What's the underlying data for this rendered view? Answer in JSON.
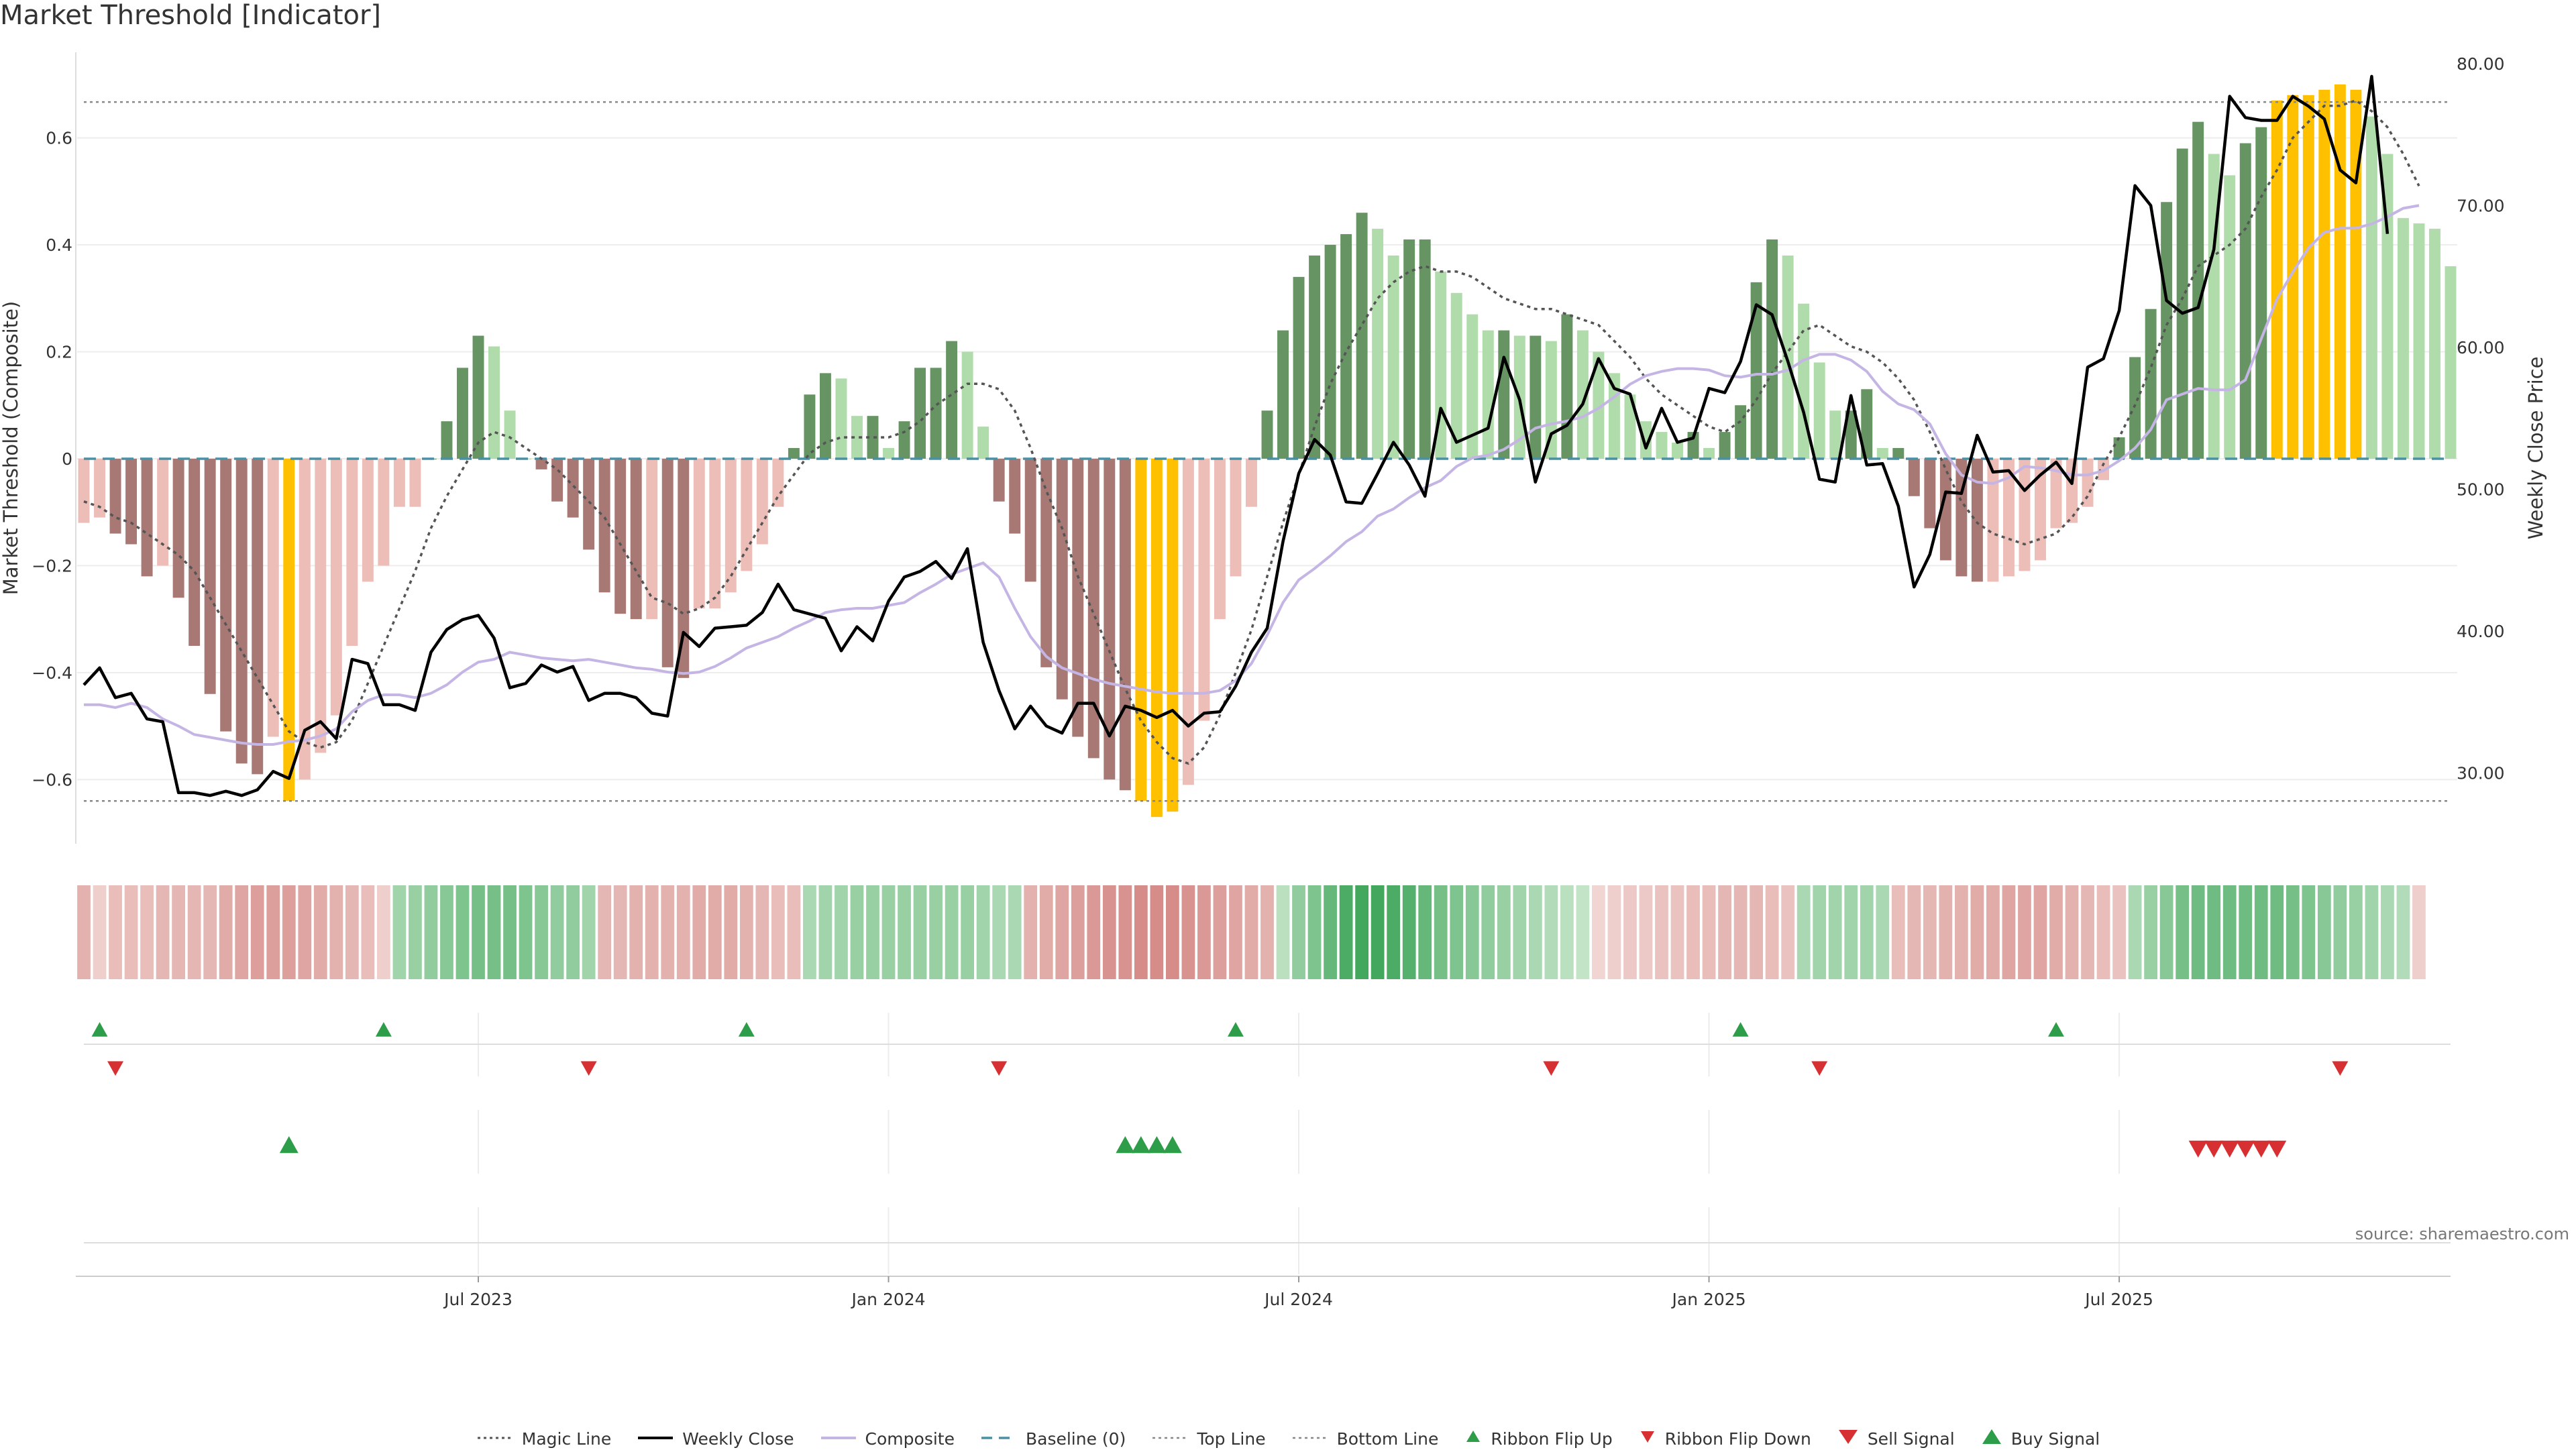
{
  "title": "Market Threshold [Indicator]",
  "source_note": "source: sharemaestro.com",
  "colors": {
    "bar_neg_dark": "#A87874",
    "bar_neg_light": "#EDBDB8",
    "bar_pos_dark": "#679463",
    "bar_pos_light": "#B0DBAA",
    "bar_extreme": "#FFC000",
    "weekly_close": "#000000",
    "composite": "#C4B5E4",
    "magic_line": "#555555",
    "baseline": "#4A90A4",
    "buy": "#2E9D49",
    "sell": "#D73033"
  },
  "chart_data": {
    "type": "bar",
    "title": "Market Threshold [Indicator]",
    "start_date": "2023-01-06",
    "x_ticks": [
      "Jul 2023",
      "Jan 2024",
      "Jul 2024",
      "Jan 2025",
      "Jul 2025"
    ],
    "x_tick_weeks": [
      25,
      51,
      77,
      103,
      129
    ],
    "y_left": {
      "label": "Market Threshold (Composite)",
      "ylim": [
        -0.72,
        0.76
      ],
      "ticks": [
        -0.6,
        -0.4,
        -0.2,
        0,
        0.2,
        0.4,
        0.6
      ],
      "tick_labels": [
        "−0.6",
        "−0.4",
        "−0.2",
        "0",
        "0.2",
        "0.4",
        "0.6"
      ]
    },
    "y_right": {
      "label": "Weekly Close Price",
      "ylim": [
        25.0,
        80.8
      ],
      "ticks": [
        30,
        40,
        50,
        60,
        70,
        80
      ],
      "tick_labels": [
        "30.00",
        "40.00",
        "50.00",
        "60.00",
        "70.00",
        "80.00"
      ]
    },
    "top_line": 0.667,
    "bottom_line": -0.64,
    "composite_bars": [
      -0.12,
      -0.11,
      -0.14,
      -0.16,
      -0.22,
      -0.2,
      -0.26,
      -0.35,
      -0.44,
      -0.51,
      -0.57,
      -0.59,
      -0.52,
      -0.64,
      -0.6,
      -0.55,
      -0.48,
      -0.35,
      -0.23,
      -0.2,
      -0.09,
      -0.09,
      0,
      0.07,
      0.17,
      0.23,
      0.21,
      0.09,
      0.0,
      -0.02,
      -0.08,
      -0.11,
      -0.17,
      -0.25,
      -0.29,
      -0.3,
      -0.3,
      -0.39,
      -0.41,
      -0.28,
      -0.28,
      -0.25,
      -0.21,
      -0.16,
      -0.09,
      0.02,
      0.12,
      0.16,
      0.15,
      0.08,
      0.08,
      0.02,
      0.07,
      0.17,
      0.17,
      0.22,
      0.2,
      0.06,
      -0.08,
      -0.14,
      -0.23,
      -0.39,
      -0.45,
      -0.52,
      -0.56,
      -0.6,
      -0.62,
      -0.64,
      -0.67,
      -0.66,
      -0.61,
      -0.49,
      -0.3,
      -0.22,
      -0.09,
      0.09,
      0.24,
      0.34,
      0.38,
      0.4,
      0.42,
      0.46,
      0.43,
      0.38,
      0.41,
      0.41,
      0.35,
      0.31,
      0.27,
      0.24,
      0.24,
      0.23,
      0.23,
      0.22,
      0.27,
      0.24,
      0.2,
      0.16,
      0.12,
      0.07,
      0.05,
      0.03,
      0.05,
      0.02,
      0.05,
      0.1,
      0.33,
      0.41,
      0.38,
      0.29,
      0.18,
      0.09,
      0.09,
      0.13,
      0.02,
      0.02,
      -0.07,
      -0.13,
      -0.19,
      -0.22,
      -0.23,
      -0.23,
      -0.22,
      -0.21,
      -0.19,
      -0.13,
      -0.12,
      -0.09,
      -0.04,
      0.04,
      0.19,
      0.28,
      0.48,
      0.58,
      0.63,
      0.57,
      0.53,
      0.59,
      0.62,
      0.67,
      0.68,
      0.68,
      0.69,
      0.7,
      0.69,
      0.64,
      0.57,
      0.45,
      0.44,
      0.43,
      0.36
    ],
    "weekly_close": [
      36.2,
      37.4,
      35.3,
      35.6,
      33.8,
      33.6,
      28.6,
      28.6,
      28.4,
      28.7,
      28.4,
      28.8,
      30.1,
      29.6,
      33.0,
      33.6,
      32.4,
      38.0,
      37.7,
      34.8,
      34.8,
      34.4,
      38.5,
      40.1,
      40.8,
      41.1,
      39.5,
      36.0,
      36.3,
      37.6,
      37.1,
      37.5,
      35.1,
      35.6,
      35.6,
      35.3,
      34.2,
      34.0,
      39.9,
      38.9,
      40.2,
      40.3,
      40.4,
      41.3,
      43.3,
      41.5,
      41.2,
      40.9,
      38.6,
      40.3,
      39.3,
      42.1,
      43.8,
      44.2,
      44.9,
      43.7,
      45.8,
      39.2,
      35.8,
      33.1,
      34.7,
      33.3,
      32.8,
      34.9,
      34.9,
      32.6,
      34.7,
      34.4,
      33.9,
      34.4,
      33.3,
      34.2,
      34.3,
      36.1,
      38.5,
      40.2,
      46.3,
      51.1,
      53.5,
      52.4,
      49.1,
      49.0,
      51.1,
      53.3,
      51.7,
      49.5,
      55.7,
      53.3,
      53.8,
      54.3,
      59.3,
      56.3,
      50.5,
      53.9,
      54.5,
      56.0,
      59.2,
      57.1,
      56.7,
      52.9,
      55.7,
      53.3,
      53.6,
      57.1,
      56.8,
      59.0,
      63.0,
      62.3,
      59.0,
      55.4,
      50.7,
      50.5,
      56.6,
      51.7,
      51.8,
      48.8,
      43.1,
      45.4,
      49.8,
      49.7,
      53.8,
      51.2,
      51.3,
      49.9,
      51.0,
      51.9,
      50.4,
      58.6,
      59.2,
      62.6,
      71.4,
      70.0,
      63.3,
      62.4,
      62.8,
      66.9,
      77.7,
      76.2,
      76.0,
      76.0,
      77.7,
      77.0,
      76.1,
      72.5,
      71.6,
      79.1,
      68.0
    ],
    "composite_line": [
      34.8,
      34.8,
      34.6,
      34.9,
      34.6,
      33.8,
      33.3,
      32.7,
      32.5,
      32.3,
      32.1,
      32.0,
      32.0,
      32.2,
      32.3,
      32.6,
      33.1,
      34.3,
      35.1,
      35.5,
      35.5,
      35.3,
      35.6,
      36.2,
      37.1,
      37.8,
      38.0,
      38.5,
      38.3,
      38.1,
      38.0,
      37.9,
      38.0,
      37.8,
      37.6,
      37.4,
      37.3,
      37.1,
      37.0,
      37.1,
      37.5,
      38.1,
      38.8,
      39.2,
      39.6,
      40.2,
      40.7,
      41.3,
      41.5,
      41.6,
      41.6,
      41.8,
      42.0,
      42.7,
      43.3,
      44.0,
      44.4,
      44.8,
      43.8,
      41.6,
      39.6,
      38.2,
      37.4,
      37.0,
      36.6,
      36.3,
      36.1,
      35.9,
      35.7,
      35.6,
      35.6,
      35.6,
      35.8,
      36.5,
      37.7,
      39.7,
      42.0,
      43.6,
      44.4,
      45.3,
      46.3,
      47.0,
      48.1,
      48.6,
      49.4,
      50.1,
      50.6,
      51.6,
      52.2,
      52.4,
      52.8,
      53.5,
      54.3,
      54.6,
      54.8,
      55.1,
      55.7,
      56.5,
      57.4,
      58.0,
      58.3,
      58.5,
      58.5,
      58.4,
      58.0,
      57.9,
      58.1,
      58.1,
      58.4,
      59.1,
      59.5,
      59.5,
      59.1,
      58.3,
      56.9,
      56.0,
      55.6,
      54.6,
      52.5,
      51.0,
      50.5,
      50.4,
      50.8,
      51.6,
      51.5,
      51.3,
      51.0,
      51.0,
      51.3,
      52.0,
      52.9,
      54.2,
      56.3,
      56.7,
      57.1,
      57.0,
      57.0,
      57.7,
      60.6,
      63.4,
      65.3,
      67.0,
      68.1,
      68.4,
      68.4,
      68.7,
      69.2,
      69.8,
      70.0
    ],
    "magic_line": [
      -0.08,
      -0.09,
      -0.11,
      -0.12,
      -0.14,
      -0.16,
      -0.18,
      -0.21,
      -0.26,
      -0.31,
      -0.36,
      -0.41,
      -0.46,
      -0.51,
      -0.53,
      -0.54,
      -0.53,
      -0.49,
      -0.42,
      -0.35,
      -0.28,
      -0.21,
      -0.13,
      -0.07,
      -0.02,
      0.03,
      0.05,
      0.04,
      0.02,
      0.0,
      -0.02,
      -0.05,
      -0.08,
      -0.11,
      -0.16,
      -0.21,
      -0.26,
      -0.27,
      -0.29,
      -0.28,
      -0.26,
      -0.22,
      -0.17,
      -0.12,
      -0.07,
      -0.03,
      0.01,
      0.03,
      0.04,
      0.04,
      0.04,
      0.04,
      0.05,
      0.07,
      0.1,
      0.12,
      0.14,
      0.14,
      0.13,
      0.09,
      0.02,
      -0.06,
      -0.13,
      -0.22,
      -0.29,
      -0.36,
      -0.43,
      -0.49,
      -0.53,
      -0.56,
      -0.57,
      -0.54,
      -0.48,
      -0.4,
      -0.32,
      -0.22,
      -0.12,
      -0.03,
      0.06,
      0.14,
      0.2,
      0.25,
      0.3,
      0.33,
      0.35,
      0.36,
      0.35,
      0.35,
      0.34,
      0.32,
      0.3,
      0.29,
      0.28,
      0.28,
      0.27,
      0.26,
      0.25,
      0.22,
      0.19,
      0.15,
      0.12,
      0.1,
      0.08,
      0.06,
      0.05,
      0.07,
      0.11,
      0.16,
      0.2,
      0.24,
      0.25,
      0.23,
      0.21,
      0.2,
      0.18,
      0.15,
      0.11,
      0.05,
      -0.02,
      -0.08,
      -0.12,
      -0.14,
      -0.15,
      -0.16,
      -0.15,
      -0.14,
      -0.11,
      -0.07,
      -0.01,
      0.04,
      0.1,
      0.17,
      0.25,
      0.3,
      0.36,
      0.38,
      0.4,
      0.43,
      0.49,
      0.54,
      0.6,
      0.63,
      0.66,
      0.66,
      0.67,
      0.65,
      0.62,
      0.57,
      0.51
    ],
    "ribbon": [
      -0.4,
      -0.15,
      -0.3,
      -0.3,
      -0.3,
      -0.35,
      -0.35,
      -0.35,
      -0.35,
      -0.45,
      -0.5,
      -0.55,
      -0.55,
      -0.55,
      -0.5,
      -0.45,
      -0.4,
      -0.35,
      -0.3,
      -0.15,
      0.35,
      0.4,
      0.45,
      0.5,
      0.55,
      0.6,
      0.6,
      0.6,
      0.55,
      0.5,
      0.45,
      0.45,
      0.35,
      -0.35,
      -0.35,
      -0.4,
      -0.4,
      -0.4,
      -0.4,
      -0.45,
      -0.45,
      -0.45,
      -0.4,
      -0.35,
      -0.3,
      -0.3,
      0.3,
      0.35,
      0.35,
      0.4,
      0.4,
      0.4,
      0.4,
      0.4,
      0.4,
      0.4,
      0.4,
      0.35,
      0.3,
      0.3,
      -0.4,
      -0.45,
      -0.5,
      -0.55,
      -0.6,
      -0.65,
      -0.65,
      -0.7,
      -0.7,
      -0.7,
      -0.65,
      -0.6,
      -0.55,
      -0.5,
      -0.45,
      -0.4,
      0.2,
      0.45,
      0.55,
      0.7,
      0.85,
      0.9,
      0.9,
      0.85,
      0.8,
      0.7,
      0.6,
      0.55,
      0.5,
      0.45,
      0.4,
      0.35,
      0.3,
      0.25,
      0.2,
      0.15,
      -0.1,
      -0.15,
      -0.2,
      -0.2,
      -0.25,
      -0.25,
      -0.3,
      -0.3,
      -0.35,
      -0.35,
      -0.35,
      -0.3,
      -0.25,
      0.3,
      0.35,
      0.35,
      0.35,
      0.35,
      0.3,
      -0.3,
      -0.35,
      -0.35,
      -0.4,
      -0.4,
      -0.45,
      -0.45,
      -0.5,
      -0.5,
      -0.5,
      -0.45,
      -0.4,
      -0.35,
      -0.3,
      -0.25,
      0.3,
      0.4,
      0.5,
      0.6,
      0.65,
      0.65,
      0.65,
      0.65,
      0.65,
      0.65,
      0.6,
      0.55,
      0.5,
      0.45,
      0.4,
      0.35,
      0.3,
      0.25,
      -0.15
    ],
    "ribbon_flip_up_weeks": [
      1,
      19,
      42,
      73,
      105,
      125
    ],
    "ribbon_flip_down_weeks": [
      2,
      32,
      58,
      93,
      110,
      143
    ],
    "buy_signal_weeks": [
      13,
      66,
      67,
      68,
      69
    ],
    "sell_signal_weeks": [
      134,
      135,
      136,
      137,
      138,
      139
    ]
  },
  "legend": [
    {
      "key": "magic",
      "label": "Magic Line"
    },
    {
      "key": "close",
      "label": "Weekly Close"
    },
    {
      "key": "composite",
      "label": "Composite"
    },
    {
      "key": "baseline",
      "label": "Baseline (0)"
    },
    {
      "key": "top",
      "label": "Top Line"
    },
    {
      "key": "bottom",
      "label": "Bottom Line"
    },
    {
      "key": "flipup",
      "label": "Ribbon Flip Up"
    },
    {
      "key": "flipdown",
      "label": "Ribbon Flip Down"
    },
    {
      "key": "sell",
      "label": "Sell Signal"
    },
    {
      "key": "buy",
      "label": "Buy Signal"
    }
  ]
}
